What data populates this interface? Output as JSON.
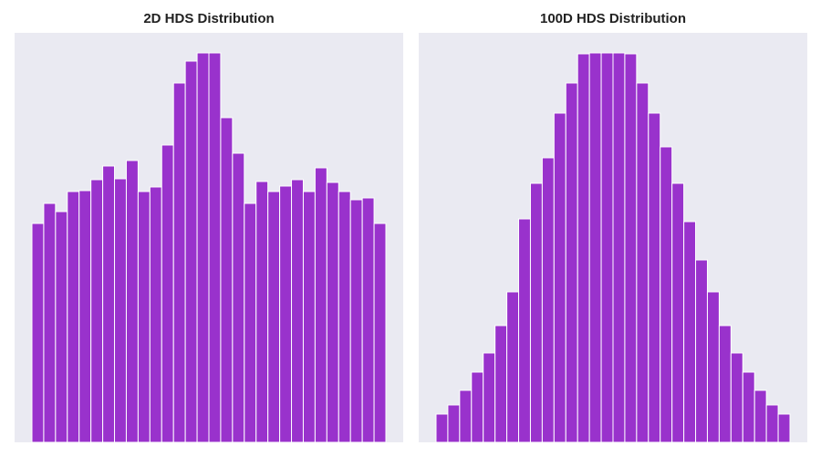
{
  "chart_data": [
    {
      "type": "bar",
      "title": "2D HDS Distribution",
      "xlabel": "",
      "ylabel": "",
      "values": [
        240,
        262,
        253,
        275,
        276,
        288,
        303,
        289,
        309,
        275,
        280,
        326,
        394,
        418,
        427,
        427,
        356,
        317,
        262,
        286,
        275,
        281,
        288,
        275,
        301,
        285,
        275,
        266,
        268,
        240
      ],
      "ylim": [
        0,
        427
      ],
      "color": "#9932cc",
      "grid": false
    },
    {
      "type": "bar",
      "title": "100D HDS Distribution",
      "xlabel": "",
      "ylabel": "",
      "values": [
        31,
        41,
        57,
        77,
        98,
        128,
        165,
        245,
        284,
        312,
        361,
        394,
        426,
        427,
        427,
        427,
        426,
        394,
        361,
        324,
        284,
        242,
        200,
        165,
        128,
        98,
        77,
        57,
        41,
        31
      ],
      "ylim": [
        0,
        427
      ],
      "color": "#9932cc",
      "grid": false
    }
  ]
}
